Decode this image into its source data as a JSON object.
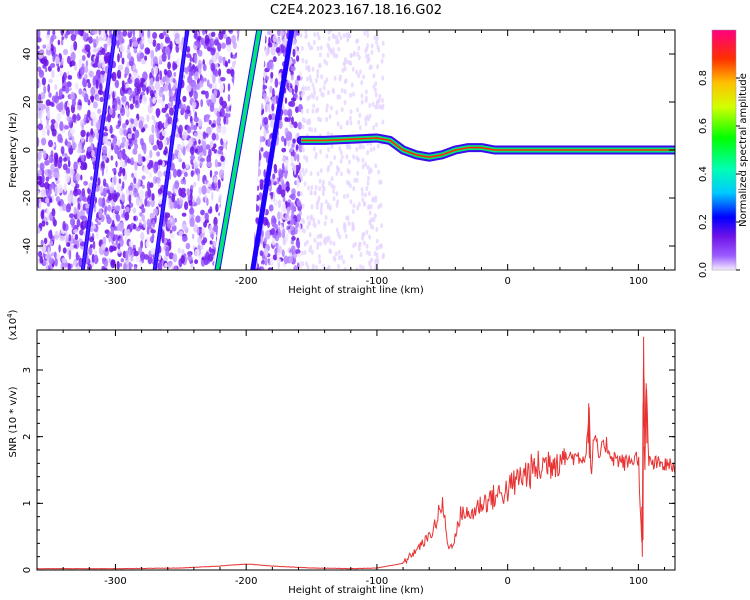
{
  "title": "C2E4.2023.167.18.16.G02",
  "chart_data": [
    {
      "type": "heatmap",
      "xlabel": "Height of straight line (km)",
      "ylabel": "Frequency (Hz)",
      "xlim": [
        -360,
        128
      ],
      "ylim": [
        -50,
        50
      ],
      "xticks": [
        "-300",
        "-200",
        "-100",
        "0",
        "100"
      ],
      "yticks": [
        "-40",
        "-20",
        "0",
        "20",
        "40"
      ],
      "xtick_values": [
        -300,
        -200,
        -100,
        0,
        100
      ],
      "ytick_values": [
        -40,
        -20,
        0,
        20,
        40
      ],
      "colorbar": {
        "label": "Normalized spectral amplitude",
        "range": [
          0,
          1
        ],
        "ticks": [
          "0.0",
          "0.2",
          "0.4",
          "0.6",
          "0.8"
        ],
        "tick_values": [
          0,
          0.2,
          0.4,
          0.6,
          0.8
        ]
      },
      "signal_track": {
        "x": [
          -158,
          -140,
          -120,
          -100,
          -90,
          -80,
          -70,
          -60,
          -50,
          -40,
          -30,
          -20,
          -10,
          0,
          50,
          100,
          128
        ],
        "y": [
          4,
          4,
          4.5,
          5,
          4,
          0,
          -2,
          -3,
          -2,
          0,
          1,
          1,
          0,
          0,
          0,
          0,
          0
        ]
      },
      "grid": false
    },
    {
      "type": "line",
      "xlabel": "Height of straight line (km)",
      "ylabel": "SNR (10 * v/v)",
      "exponent_label": "(x10",
      "exponent_power": "4",
      "exponent_close": ")",
      "xlim": [
        -360,
        128
      ],
      "ylim": [
        0,
        3.6
      ],
      "xticks": [
        "-300",
        "-200",
        "-100",
        "0",
        "100"
      ],
      "yticks": [
        "0",
        "1",
        "2",
        "3"
      ],
      "xtick_values": [
        -300,
        -200,
        -100,
        0,
        100
      ],
      "ytick_values": [
        0,
        1,
        2,
        3
      ],
      "series": [
        {
          "color": "#e83232",
          "x": [
            -360,
            -300,
            -250,
            -220,
            -200,
            -180,
            -150,
            -120,
            -100,
            -80,
            -70,
            -60,
            -55,
            -50,
            -45,
            -40,
            -35,
            -30,
            -20,
            -10,
            0,
            10,
            20,
            30,
            40,
            50,
            60,
            62,
            64,
            66,
            70,
            75,
            80,
            90,
            100,
            103,
            104,
            105,
            106,
            108,
            110,
            128
          ],
          "y": [
            0.02,
            0.02,
            0.03,
            0.06,
            0.09,
            0.06,
            0.03,
            0.02,
            0.03,
            0.1,
            0.3,
            0.5,
            0.7,
            1.0,
            0.3,
            0.5,
            0.9,
            0.8,
            1.0,
            1.1,
            1.2,
            1.4,
            1.5,
            1.6,
            1.7,
            1.7,
            1.7,
            2.5,
            1.4,
            2.0,
            1.7,
            1.9,
            1.7,
            1.6,
            1.7,
            0.2,
            3.5,
            1.5,
            2.8,
            1.6,
            1.6,
            1.55
          ]
        }
      ],
      "grid": false
    }
  ]
}
